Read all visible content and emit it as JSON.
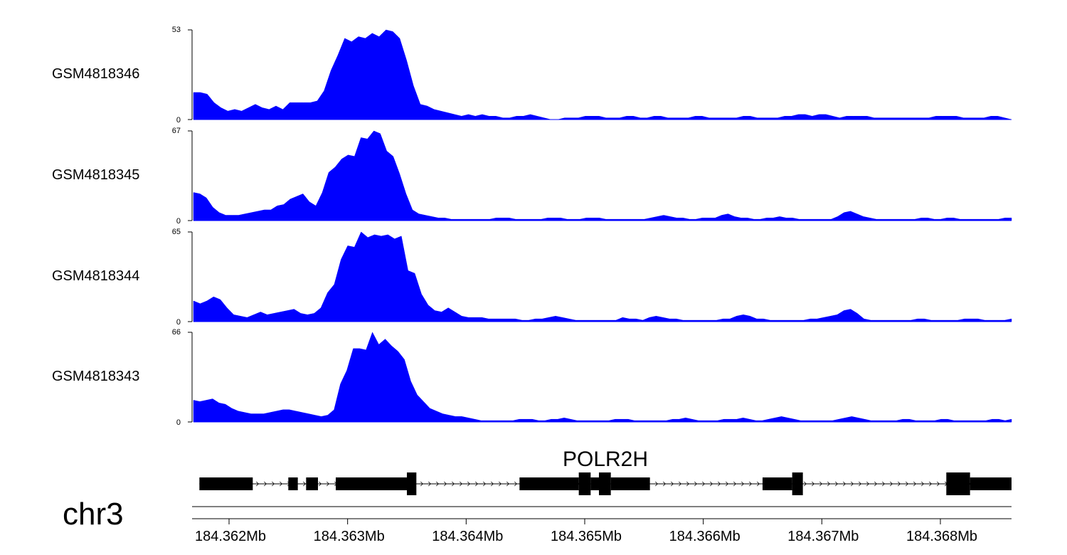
{
  "chart_data": {
    "type": "area",
    "x_unit": "Mb",
    "xlim": [
      184.3617,
      184.3686
    ],
    "series_color": "#0000ff",
    "tracks": [
      {
        "name": "GSM4818346",
        "ymax": 53,
        "ymin": 0,
        "values": [
          16,
          16,
          15,
          10,
          7,
          5,
          6,
          5,
          7,
          9,
          7,
          6,
          8,
          6,
          10,
          10,
          10,
          10,
          11,
          17,
          29,
          38,
          48,
          46,
          49,
          48,
          51,
          49,
          53,
          52,
          48,
          35,
          20,
          9,
          8,
          6,
          5,
          4,
          3,
          2,
          3,
          2,
          3,
          2,
          2,
          1,
          1,
          2,
          2,
          3,
          2,
          1,
          0,
          0,
          1,
          1,
          1,
          2,
          2,
          2,
          1,
          1,
          1,
          2,
          2,
          1,
          1,
          2,
          2,
          1,
          1,
          1,
          1,
          2,
          2,
          1,
          1,
          1,
          1,
          1,
          2,
          2,
          1,
          1,
          1,
          1,
          2,
          2,
          3,
          3,
          2,
          3,
          3,
          2,
          1,
          2,
          2,
          2,
          2,
          1,
          1,
          1,
          1,
          1,
          1,
          1,
          1,
          1,
          2,
          2,
          2,
          2,
          1,
          1,
          1,
          1,
          2,
          2,
          1,
          0
        ]
      },
      {
        "name": "GSM4818345",
        "ymax": 67,
        "ymin": 0,
        "values": [
          21,
          20,
          17,
          10,
          6,
          4,
          4,
          4,
          5,
          6,
          7,
          8,
          8,
          11,
          12,
          16,
          18,
          20,
          14,
          11,
          21,
          36,
          40,
          46,
          49,
          48,
          62,
          61,
          67,
          65,
          52,
          48,
          35,
          20,
          8,
          5,
          4,
          3,
          2,
          2,
          1,
          1,
          1,
          1,
          1,
          1,
          1,
          2,
          2,
          2,
          1,
          1,
          1,
          1,
          1,
          2,
          2,
          2,
          1,
          1,
          1,
          2,
          2,
          2,
          1,
          1,
          1,
          1,
          1,
          1,
          1,
          2,
          3,
          4,
          3,
          2,
          2,
          1,
          1,
          2,
          2,
          2,
          4,
          5,
          3,
          2,
          2,
          1,
          1,
          2,
          2,
          3,
          2,
          2,
          1,
          1,
          1,
          1,
          1,
          1,
          3,
          6,
          7,
          5,
          3,
          2,
          1,
          1,
          1,
          1,
          1,
          1,
          1,
          2,
          2,
          1,
          1,
          2,
          2,
          1,
          1,
          1,
          1,
          1,
          1,
          1,
          2,
          2
        ]
      },
      {
        "name": "GSM4818344",
        "ymax": 65,
        "ymin": 0,
        "values": [
          15,
          13,
          15,
          18,
          16,
          10,
          5,
          4,
          3,
          5,
          7,
          5,
          6,
          7,
          8,
          9,
          6,
          5,
          6,
          10,
          21,
          27,
          45,
          55,
          54,
          65,
          61,
          63,
          62,
          63,
          60,
          62,
          37,
          35,
          20,
          12,
          8,
          7,
          10,
          7,
          4,
          3,
          3,
          3,
          2,
          2,
          2,
          2,
          2,
          1,
          1,
          2,
          2,
          3,
          4,
          3,
          2,
          1,
          1,
          1,
          1,
          1,
          1,
          1,
          3,
          2,
          2,
          1,
          3,
          4,
          3,
          2,
          2,
          1,
          1,
          1,
          1,
          1,
          1,
          2,
          2,
          4,
          5,
          4,
          2,
          2,
          1,
          1,
          1,
          1,
          1,
          1,
          2,
          2,
          3,
          4,
          5,
          8,
          9,
          6,
          2,
          1,
          1,
          1,
          1,
          1,
          1,
          1,
          2,
          2,
          1,
          1,
          1,
          1,
          1,
          2,
          2,
          2,
          1,
          1,
          1,
          1,
          2
        ]
      },
      {
        "name": "GSM4818343",
        "ymax": 66,
        "ymin": 0,
        "values": [
          16,
          15,
          16,
          17,
          14,
          13,
          10,
          8,
          7,
          6,
          6,
          6,
          7,
          8,
          9,
          9,
          8,
          7,
          6,
          5,
          4,
          5,
          9,
          28,
          38,
          54,
          54,
          53,
          66,
          57,
          61,
          56,
          52,
          46,
          30,
          20,
          15,
          10,
          8,
          6,
          5,
          4,
          4,
          3,
          2,
          1,
          1,
          1,
          1,
          1,
          1,
          2,
          2,
          2,
          1,
          1,
          2,
          2,
          3,
          2,
          1,
          1,
          1,
          1,
          1,
          1,
          2,
          2,
          2,
          1,
          1,
          1,
          1,
          1,
          1,
          2,
          2,
          3,
          2,
          1,
          1,
          1,
          1,
          2,
          2,
          2,
          3,
          2,
          1,
          1,
          2,
          3,
          4,
          3,
          2,
          1,
          1,
          1,
          1,
          1,
          1,
          2,
          3,
          4,
          3,
          2,
          1,
          1,
          1,
          1,
          1,
          2,
          2,
          1,
          1,
          1,
          1,
          2,
          2,
          1,
          1,
          1,
          1,
          1,
          1,
          2,
          2,
          1,
          2
        ]
      }
    ],
    "x_ticks": [
      "184.362Mb",
      "184.363Mb",
      "184.364Mb",
      "184.365Mb",
      "184.366Mb",
      "184.367Mb",
      "184.368Mb"
    ],
    "x_tick_values": [
      184.362,
      184.363,
      184.364,
      184.365,
      184.366,
      184.367,
      184.368
    ],
    "gene": {
      "name": "POLR2H",
      "strand": "+",
      "span": [
        184.36175,
        184.3686
      ],
      "blocks": [
        {
          "start": 184.36175,
          "end": 184.3622,
          "size": "utr"
        },
        {
          "start": 184.3625,
          "end": 184.36258,
          "size": "utr"
        },
        {
          "start": 184.36265,
          "end": 184.36275,
          "size": "utr"
        },
        {
          "start": 184.3629,
          "end": 184.3635,
          "size": "utr"
        },
        {
          "start": 184.3635,
          "end": 184.36358,
          "size": "cds"
        },
        {
          "start": 184.36445,
          "end": 184.36495,
          "size": "utr"
        },
        {
          "start": 184.36495,
          "end": 184.36505,
          "size": "cds"
        },
        {
          "start": 184.36505,
          "end": 184.36512,
          "size": "utr"
        },
        {
          "start": 184.36512,
          "end": 184.36522,
          "size": "cds"
        },
        {
          "start": 184.36522,
          "end": 184.36555,
          "size": "utr"
        },
        {
          "start": 184.3665,
          "end": 184.36675,
          "size": "utr"
        },
        {
          "start": 184.36675,
          "end": 184.36684,
          "size": "cds"
        },
        {
          "start": 184.36805,
          "end": 184.36825,
          "size": "cds"
        },
        {
          "start": 184.36825,
          "end": 184.3686,
          "size": "utr"
        }
      ]
    },
    "chromosome": "chr3"
  }
}
